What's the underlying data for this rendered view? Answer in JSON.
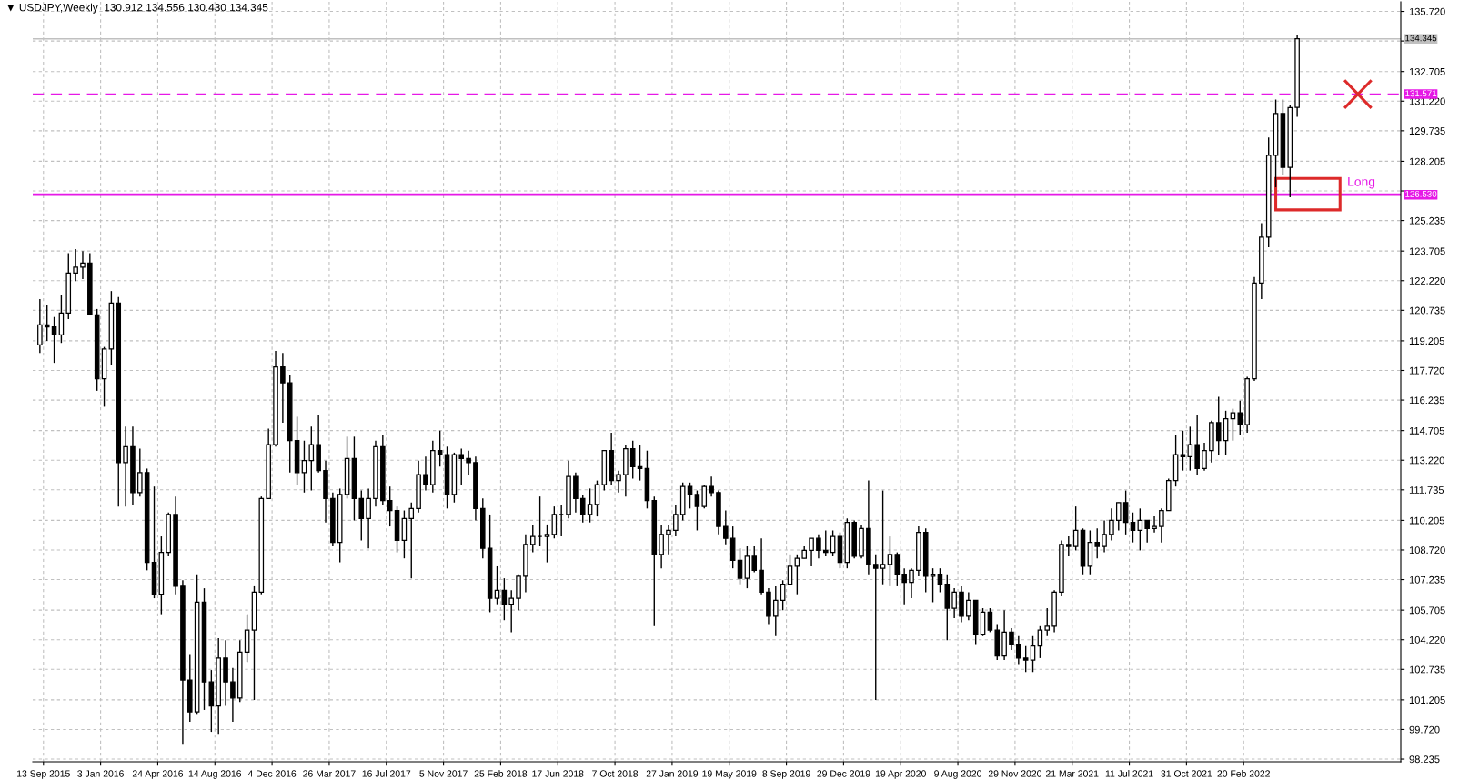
{
  "chart_data": {
    "type": "candlestick",
    "title": "▼ USDJPY,Weekly  130.912 134.556 130.430 134.345",
    "x": [
      "2015-09-06",
      "2015-09-20",
      "2015-10-04",
      "2015-10-18",
      "2015-11-01",
      "2015-11-15",
      "2015-11-29",
      "2015-12-13",
      "2015-12-27",
      "2016-01-10",
      "2016-01-24",
      "2016-02-07",
      "2016-02-21",
      "2016-03-06",
      "2016-03-20",
      "2016-04-03",
      "2016-04-17",
      "2016-05-01",
      "2016-05-15",
      "2016-05-29",
      "2016-06-12",
      "2016-06-26",
      "2016-07-10",
      "2016-07-24",
      "2016-08-07",
      "2016-08-21",
      "2016-09-04",
      "2016-09-18",
      "2016-10-02",
      "2016-10-16",
      "2016-10-30",
      "2016-11-13",
      "2016-11-27",
      "2016-12-11",
      "2016-12-25",
      "2017-01-08",
      "2017-01-22",
      "2017-02-05",
      "2017-02-19",
      "2017-03-05",
      "2017-03-19",
      "2017-04-02",
      "2017-04-16",
      "2017-04-30",
      "2017-05-14",
      "2017-05-28",
      "2017-06-11",
      "2017-06-25",
      "2017-07-09",
      "2017-07-23",
      "2017-08-06",
      "2017-08-20",
      "2017-09-03",
      "2017-09-17",
      "2017-10-01",
      "2017-10-15",
      "2017-10-29",
      "2017-11-12",
      "2017-11-26",
      "2017-12-10",
      "2017-12-24",
      "2018-01-07",
      "2018-01-21",
      "2018-02-04",
      "2018-02-18",
      "2018-03-04",
      "2018-03-18",
      "2018-04-01",
      "2018-04-15",
      "2018-04-29",
      "2018-05-13",
      "2018-05-27",
      "2018-06-10",
      "2018-06-24",
      "2018-07-08",
      "2018-07-22",
      "2018-08-05",
      "2018-08-19",
      "2018-09-02",
      "2018-09-16",
      "2018-09-30",
      "2018-10-14",
      "2018-10-28",
      "2018-11-11",
      "2018-11-25",
      "2018-12-09",
      "2018-12-23",
      "2019-01-06",
      "2019-01-20",
      "2019-02-03",
      "2019-02-17",
      "2019-03-03",
      "2019-03-17",
      "2019-03-31",
      "2019-04-14",
      "2019-04-28",
      "2019-05-12",
      "2019-05-26",
      "2019-06-09",
      "2019-06-23",
      "2019-07-07",
      "2019-07-21",
      "2019-08-04",
      "2019-08-18",
      "2019-09-01",
      "2019-09-15",
      "2019-09-29",
      "2019-10-13",
      "2019-10-27",
      "2019-11-10",
      "2019-11-24",
      "2019-12-08",
      "2019-12-22",
      "2020-01-05",
      "2020-01-19",
      "2020-02-02",
      "2020-02-16",
      "2020-03-01",
      "2020-03-15",
      "2020-03-29",
      "2020-04-12",
      "2020-04-26",
      "2020-05-10",
      "2020-05-24",
      "2020-06-07",
      "2020-06-21",
      "2020-07-05",
      "2020-07-19",
      "2020-08-02",
      "2020-08-16",
      "2020-08-30",
      "2020-09-13",
      "2020-09-27",
      "2020-10-11",
      "2020-10-25",
      "2020-11-08",
      "2020-11-22",
      "2020-12-06",
      "2020-12-20",
      "2021-01-03",
      "2021-01-17",
      "2021-01-31",
      "2021-02-14",
      "2021-02-28",
      "2021-03-14",
      "2021-03-28",
      "2021-04-11",
      "2021-04-25",
      "2021-05-09",
      "2021-05-23",
      "2021-06-06",
      "2021-06-20",
      "2021-07-04",
      "2021-07-18",
      "2021-08-01",
      "2021-08-15",
      "2021-08-29",
      "2021-09-12",
      "2021-09-26",
      "2021-10-10",
      "2021-10-24",
      "2021-11-07",
      "2021-11-21",
      "2021-12-05",
      "2021-12-19",
      "2022-01-02",
      "2022-01-16",
      "2022-01-30",
      "2022-02-13",
      "2022-02-27",
      "2022-03-13",
      "2022-03-27",
      "2022-04-10",
      "2022-04-24",
      "2022-05-08",
      "2022-05-22",
      "2022-06-05"
    ],
    "ohlc": [
      [
        119.0,
        121.3,
        118.6,
        120.0
      ],
      [
        120.0,
        121.0,
        119.2,
        119.9
      ],
      [
        119.9,
        120.4,
        118.1,
        119.5
      ],
      [
        119.5,
        121.5,
        119.1,
        120.6
      ],
      [
        120.6,
        123.6,
        120.3,
        122.6
      ],
      [
        122.6,
        123.8,
        122.2,
        122.9
      ],
      [
        122.9,
        123.7,
        122.3,
        123.1
      ],
      [
        123.1,
        123.6,
        120.5,
        120.5
      ],
      [
        120.5,
        120.8,
        116.7,
        117.3
      ],
      [
        117.3,
        118.9,
        115.9,
        118.8
      ],
      [
        118.8,
        121.7,
        118.0,
        121.1
      ],
      [
        121.1,
        121.4,
        110.9,
        113.1
      ],
      [
        113.1,
        114.9,
        110.9,
        113.9
      ],
      [
        113.9,
        114.9,
        111.0,
        111.6
      ],
      [
        111.6,
        113.8,
        111.4,
        112.6
      ],
      [
        112.6,
        112.8,
        107.7,
        108.1
      ],
      [
        108.1,
        111.9,
        106.3,
        106.5
      ],
      [
        106.5,
        109.4,
        105.5,
        108.6
      ],
      [
        108.6,
        110.6,
        108.4,
        110.5
      ],
      [
        110.5,
        111.4,
        106.5,
        106.9
      ],
      [
        106.9,
        107.2,
        99.0,
        102.2
      ],
      [
        102.2,
        103.5,
        100.1,
        100.6
      ],
      [
        100.6,
        107.5,
        100.5,
        106.1
      ],
      [
        106.1,
        106.8,
        100.7,
        102.1
      ],
      [
        102.1,
        102.7,
        99.6,
        100.9
      ],
      [
        100.9,
        104.3,
        99.5,
        103.3
      ],
      [
        103.3,
        104.2,
        100.9,
        102.1
      ],
      [
        102.1,
        102.8,
        100.1,
        101.3
      ],
      [
        101.3,
        104.2,
        101.1,
        103.6
      ],
      [
        103.6,
        105.5,
        103.1,
        104.7
      ],
      [
        104.7,
        106.9,
        101.2,
        106.6
      ],
      [
        106.6,
        111.4,
        106.5,
        111.3
      ],
      [
        111.3,
        114.8,
        111.3,
        114.0
      ],
      [
        114.0,
        118.7,
        113.9,
        117.9
      ],
      [
        117.9,
        118.6,
        115.1,
        117.1
      ],
      [
        117.1,
        117.5,
        112.6,
        114.2
      ],
      [
        114.2,
        115.4,
        112.0,
        112.6
      ],
      [
        112.6,
        114.2,
        111.6,
        113.2
      ],
      [
        113.2,
        114.9,
        111.7,
        114.0
      ],
      [
        114.0,
        115.5,
        112.6,
        112.7
      ],
      [
        112.7,
        113.2,
        110.1,
        111.3
      ],
      [
        111.3,
        111.6,
        108.9,
        109.1
      ],
      [
        109.1,
        111.8,
        108.1,
        111.5
      ],
      [
        111.5,
        114.4,
        111.3,
        113.3
      ],
      [
        113.3,
        114.4,
        110.2,
        111.3
      ],
      [
        111.3,
        111.7,
        109.2,
        110.3
      ],
      [
        110.3,
        111.8,
        108.8,
        111.3
      ],
      [
        111.3,
        114.2,
        110.9,
        113.9
      ],
      [
        113.9,
        114.5,
        111.0,
        111.2
      ],
      [
        111.2,
        111.9,
        109.9,
        110.7
      ],
      [
        110.7,
        110.9,
        108.6,
        109.2
      ],
      [
        109.2,
        110.7,
        108.3,
        110.3
      ],
      [
        110.3,
        111.1,
        107.3,
        110.8
      ],
      [
        110.8,
        113.2,
        110.6,
        112.5
      ],
      [
        112.5,
        113.4,
        111.7,
        112.0
      ],
      [
        112.0,
        114.2,
        111.6,
        113.7
      ],
      [
        113.7,
        114.7,
        112.9,
        113.5
      ],
      [
        113.5,
        113.9,
        110.8,
        111.5
      ],
      [
        111.5,
        113.6,
        111.1,
        113.5
      ],
      [
        113.5,
        113.8,
        112.0,
        113.3
      ],
      [
        113.3,
        113.7,
        112.5,
        113.1
      ],
      [
        113.1,
        113.4,
        110.2,
        110.8
      ],
      [
        110.8,
        111.3,
        108.3,
        108.8
      ],
      [
        108.8,
        110.5,
        105.6,
        106.3
      ],
      [
        106.3,
        107.9,
        106.0,
        106.7
      ],
      [
        106.7,
        107.3,
        105.2,
        106.0
      ],
      [
        106.0,
        106.7,
        104.6,
        106.3
      ],
      [
        106.3,
        107.5,
        105.7,
        107.4
      ],
      [
        107.4,
        109.5,
        106.6,
        109.0
      ],
      [
        109.0,
        110.0,
        108.6,
        109.4
      ],
      [
        109.4,
        111.4,
        108.9,
        109.4
      ],
      [
        109.4,
        110.0,
        108.1,
        109.5
      ],
      [
        109.5,
        110.9,
        109.3,
        110.5
      ],
      [
        110.5,
        111.0,
        109.4,
        110.5
      ],
      [
        110.5,
        113.2,
        110.3,
        112.4
      ],
      [
        112.4,
        112.6,
        110.6,
        111.3
      ],
      [
        111.3,
        111.5,
        110.1,
        110.5
      ],
      [
        110.5,
        111.8,
        110.1,
        111.0
      ],
      [
        111.0,
        112.2,
        110.4,
        112.0
      ],
      [
        112.0,
        113.7,
        111.7,
        113.7
      ],
      [
        113.7,
        114.6,
        112.0,
        112.2
      ],
      [
        112.2,
        112.7,
        111.6,
        112.5
      ],
      [
        112.5,
        114.0,
        111.4,
        113.8
      ],
      [
        113.8,
        114.2,
        112.3,
        112.9
      ],
      [
        112.9,
        114.0,
        112.2,
        112.8
      ],
      [
        112.8,
        113.7,
        110.8,
        111.2
      ],
      [
        111.2,
        111.4,
        104.9,
        108.5
      ],
      [
        108.5,
        110.0,
        107.8,
        109.5
      ],
      [
        109.5,
        110.0,
        108.5,
        109.7
      ],
      [
        109.7,
        111.0,
        109.4,
        110.5
      ],
      [
        110.5,
        112.1,
        110.2,
        111.9
      ],
      [
        111.9,
        112.1,
        110.8,
        111.5
      ],
      [
        111.5,
        111.7,
        109.7,
        110.9
      ],
      [
        110.9,
        112.0,
        110.8,
        111.9
      ],
      [
        111.9,
        112.4,
        111.4,
        111.6
      ],
      [
        111.6,
        111.7,
        109.5,
        109.9
      ],
      [
        109.9,
        110.7,
        109.0,
        109.3
      ],
      [
        109.3,
        109.9,
        107.8,
        108.2
      ],
      [
        108.2,
        108.8,
        107.0,
        107.3
      ],
      [
        107.3,
        108.9,
        106.8,
        108.4
      ],
      [
        108.4,
        108.9,
        107.6,
        107.7
      ],
      [
        107.7,
        109.3,
        106.5,
        106.6
      ],
      [
        106.6,
        106.8,
        105.0,
        105.4
      ],
      [
        105.4,
        106.9,
        104.4,
        106.2
      ],
      [
        106.2,
        107.2,
        105.7,
        107.0
      ],
      [
        107.0,
        108.5,
        107.0,
        107.9
      ],
      [
        107.9,
        108.5,
        106.5,
        108.3
      ],
      [
        108.3,
        108.9,
        108.3,
        108.7
      ],
      [
        108.7,
        109.3,
        107.9,
        109.3
      ],
      [
        109.3,
        109.5,
        108.3,
        108.7
      ],
      [
        108.7,
        109.7,
        108.4,
        108.6
      ],
      [
        108.6,
        109.7,
        108.4,
        109.4
      ],
      [
        109.4,
        109.6,
        107.8,
        108.1
      ],
      [
        108.1,
        110.3,
        107.8,
        110.1
      ],
      [
        110.1,
        110.2,
        108.3,
        108.4
      ],
      [
        108.4,
        110.0,
        108.3,
        109.8
      ],
      [
        109.8,
        112.2,
        107.5,
        108.0
      ],
      [
        108.0,
        108.5,
        101.2,
        107.8
      ],
      [
        107.8,
        111.7,
        107.0,
        108.0
      ],
      [
        108.0,
        109.4,
        106.9,
        108.5
      ],
      [
        108.5,
        108.6,
        106.9,
        107.5
      ],
      [
        107.5,
        107.8,
        106.0,
        107.1
      ],
      [
        107.1,
        107.8,
        106.3,
        107.7
      ],
      [
        107.7,
        109.9,
        107.4,
        109.6
      ],
      [
        109.6,
        109.8,
        106.6,
        107.4
      ],
      [
        107.4,
        107.8,
        106.1,
        107.5
      ],
      [
        107.5,
        107.8,
        106.6,
        107.0
      ],
      [
        107.0,
        107.5,
        104.2,
        105.8
      ],
      [
        105.8,
        106.8,
        105.3,
        106.6
      ],
      [
        106.6,
        106.9,
        105.1,
        105.4
      ],
      [
        105.4,
        106.6,
        105.2,
        106.2
      ],
      [
        106.2,
        106.2,
        104.0,
        104.5
      ],
      [
        104.5,
        105.8,
        104.4,
        105.6
      ],
      [
        105.6,
        105.8,
        104.6,
        104.7
      ],
      [
        104.7,
        105.0,
        103.2,
        103.4
      ],
      [
        103.4,
        105.7,
        103.2,
        104.6
      ],
      [
        104.6,
        104.8,
        103.7,
        104.0
      ],
      [
        104.0,
        104.4,
        103.0,
        103.3
      ],
      [
        103.3,
        103.9,
        102.6,
        103.2
      ],
      [
        103.2,
        104.4,
        102.6,
        103.9
      ],
      [
        103.9,
        104.9,
        103.3,
        104.7
      ],
      [
        104.7,
        105.8,
        104.4,
        104.9
      ],
      [
        104.9,
        106.7,
        104.6,
        106.6
      ],
      [
        106.6,
        109.2,
        106.4,
        109.0
      ],
      [
        109.0,
        109.4,
        108.4,
        108.9
      ],
      [
        108.9,
        110.9,
        108.7,
        109.7
      ],
      [
        109.7,
        109.8,
        107.5,
        107.9
      ],
      [
        107.9,
        109.7,
        107.5,
        109.1
      ],
      [
        109.1,
        109.8,
        108.3,
        108.9
      ],
      [
        108.9,
        110.2,
        108.6,
        109.5
      ],
      [
        109.5,
        110.8,
        109.2,
        110.2
      ],
      [
        110.2,
        111.1,
        109.7,
        111.1
      ],
      [
        111.1,
        111.7,
        109.5,
        110.1
      ],
      [
        110.1,
        110.6,
        109.1,
        109.7
      ],
      [
        109.7,
        110.8,
        108.7,
        110.2
      ],
      [
        110.2,
        110.2,
        109.1,
        109.8
      ],
      [
        109.8,
        110.4,
        109.6,
        109.9
      ],
      [
        109.9,
        110.8,
        109.1,
        110.7
      ],
      [
        110.7,
        112.3,
        110.7,
        112.2
      ],
      [
        112.2,
        114.5,
        111.9,
        113.5
      ],
      [
        113.5,
        114.7,
        112.7,
        113.4
      ],
      [
        113.4,
        114.9,
        112.7,
        114.0
      ],
      [
        114.0,
        115.5,
        112.5,
        112.8
      ],
      [
        112.8,
        114.1,
        112.7,
        113.7
      ],
      [
        113.7,
        115.2,
        113.1,
        115.1
      ],
      [
        115.1,
        116.4,
        113.5,
        114.2
      ],
      [
        114.2,
        115.7,
        113.5,
        115.3
      ],
      [
        115.3,
        115.8,
        114.2,
        115.6
      ],
      [
        115.6,
        116.2,
        114.5,
        115.0
      ],
      [
        115.0,
        117.4,
        114.6,
        117.3
      ],
      [
        117.3,
        122.4,
        117.2,
        122.1
      ],
      [
        122.1,
        125.1,
        121.3,
        124.4
      ],
      [
        124.4,
        129.4,
        123.9,
        128.5
      ],
      [
        128.5,
        131.3,
        126.9,
        130.6
      ],
      [
        130.6,
        131.3,
        127.5,
        127.9
      ],
      [
        127.9,
        131.0,
        126.4,
        130.9
      ],
      [
        130.912,
        134.556,
        130.43,
        134.345
      ]
    ],
    "xlim": [
      "2015-08-23",
      "2022-12-25"
    ],
    "xticks": [
      {
        "value": "2015-09-13",
        "label": "13 Sep 2015"
      },
      {
        "value": "2016-01-03",
        "label": "3 Jan 2016"
      },
      {
        "value": "2016-04-24",
        "label": "24 Apr 2016"
      },
      {
        "value": "2016-08-14",
        "label": "14 Aug 2016"
      },
      {
        "value": "2016-12-04",
        "label": "4 Dec 2016"
      },
      {
        "value": "2017-03-26",
        "label": "26 Mar 2017"
      },
      {
        "value": "2017-07-16",
        "label": "16 Jul 2017"
      },
      {
        "value": "2017-11-05",
        "label": "5 Nov 2017"
      },
      {
        "value": "2018-02-25",
        "label": "25 Feb 2018"
      },
      {
        "value": "2018-06-17",
        "label": "17 Jun 2018"
      },
      {
        "value": "2018-10-07",
        "label": "7 Oct 2018"
      },
      {
        "value": "2019-01-27",
        "label": "27 Jan 2019"
      },
      {
        "value": "2019-05-19",
        "label": "19 May 2019"
      },
      {
        "value": "2019-09-08",
        "label": "8 Sep 2019"
      },
      {
        "value": "2019-12-29",
        "label": "29 Dec 2019"
      },
      {
        "value": "2020-04-19",
        "label": "19 Apr 2020"
      },
      {
        "value": "2020-08-09",
        "label": "9 Aug 2020"
      },
      {
        "value": "2020-11-29",
        "label": "29 Nov 2020"
      },
      {
        "value": "2021-03-21",
        "label": "21 Mar 2021"
      },
      {
        "value": "2021-07-11",
        "label": "11 Jul 2021"
      },
      {
        "value": "2021-10-31",
        "label": "31 Oct 2021"
      },
      {
        "value": "2022-02-20",
        "label": "20 Feb 2022"
      }
    ],
    "ylim": [
      98.1,
      136.2
    ],
    "yticks": [
      {
        "value": 98.235,
        "label": "98.235"
      },
      {
        "value": 99.72,
        "label": "99.720"
      },
      {
        "value": 101.205,
        "label": "101.205"
      },
      {
        "value": 102.735,
        "label": "102.735"
      },
      {
        "value": 104.22,
        "label": "104.220"
      },
      {
        "value": 105.705,
        "label": "105.705"
      },
      {
        "value": 107.235,
        "label": "107.235"
      },
      {
        "value": 108.72,
        "label": "108.720"
      },
      {
        "value": 110.205,
        "label": "110.205"
      },
      {
        "value": 111.735,
        "label": "111.735"
      },
      {
        "value": 113.22,
        "label": "113.220"
      },
      {
        "value": 114.705,
        "label": "114.705"
      },
      {
        "value": 116.235,
        "label": "116.235"
      },
      {
        "value": 117.72,
        "label": "117.720"
      },
      {
        "value": 119.205,
        "label": "119.205"
      },
      {
        "value": 120.735,
        "label": "120.735"
      },
      {
        "value": 122.22,
        "label": "122.220"
      },
      {
        "value": 123.705,
        "label": "123.705"
      },
      {
        "value": 125.235,
        "label": "125.235"
      },
      {
        "value": 126.72,
        "label": null
      },
      {
        "value": 128.205,
        "label": "128.205"
      },
      {
        "value": 129.735,
        "label": "129.735"
      },
      {
        "value": 131.22,
        "label": "131.220"
      },
      {
        "value": 132.705,
        "label": "132.705"
      },
      {
        "value": 134.235,
        "label": null
      },
      {
        "value": 135.72,
        "label": "135.720"
      }
    ],
    "grid": true,
    "ref_lines": [
      {
        "axis": "y",
        "value": 134.345,
        "label": "134.345",
        "color": "#c0c0c0",
        "line_style": "solid"
      },
      {
        "axis": "y",
        "value": 131.571,
        "label": "131.571",
        "color": "#e619e6",
        "line_style": "dashed"
      },
      {
        "axis": "y",
        "value": 126.53,
        "label": "126.530",
        "color": "#e619e6",
        "line_style": "solid"
      }
    ],
    "annotations": [
      "Long"
    ]
  }
}
